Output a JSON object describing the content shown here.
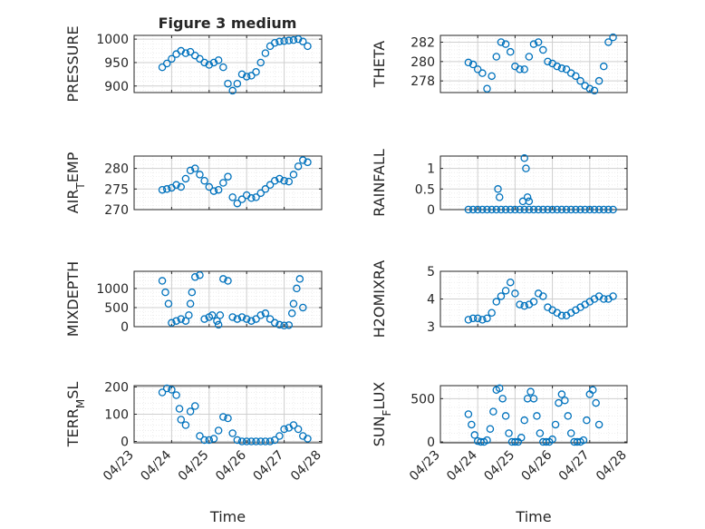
{
  "figure_title": "Figure 3 medium",
  "colors": {
    "marker": "#0072BD",
    "axis": "#262626",
    "grid": "#cfcfcf",
    "minor_grid": "#e6e6e6"
  },
  "chart_data": [
    {
      "type": "scatter",
      "title": "Figure 3 medium",
      "ylabel": "PRESSURE",
      "xlabel": "",
      "xlim": [
        "04/23",
        "04/28"
      ],
      "ylim": [
        886,
        1008
      ],
      "yticks": [
        900,
        950,
        1000
      ],
      "grid": true,
      "minor_grid": true,
      "marker": "open-circle",
      "x": [
        "04/23 18:00",
        "04/23 21:00",
        "04/24 00:00",
        "04/24 03:00",
        "04/24 06:00",
        "04/24 09:00",
        "04/24 12:00",
        "04/24 15:00",
        "04/24 18:00",
        "04/24 21:00",
        "04/25 00:00",
        "04/25 03:00",
        "04/25 06:00",
        "04/25 09:00",
        "04/25 12:00",
        "04/25 15:00",
        "04/25 18:00",
        "04/25 21:00",
        "04/26 00:00",
        "04/26 03:00",
        "04/26 06:00",
        "04/26 09:00",
        "04/26 12:00",
        "04/26 15:00",
        "04/26 18:00",
        "04/26 21:00",
        "04/27 00:00",
        "04/27 03:00",
        "04/27 06:00",
        "04/27 09:00",
        "04/27 12:00",
        "04/27 15:00"
      ],
      "y": [
        940,
        948,
        958,
        968,
        975,
        970,
        973,
        965,
        958,
        950,
        945,
        950,
        955,
        940,
        905,
        890,
        905,
        925,
        920,
        922,
        930,
        950,
        970,
        985,
        992,
        995,
        996,
        997,
        998,
        1000,
        995,
        985
      ]
    },
    {
      "type": "scatter",
      "ylabel": "THETA",
      "xlabel": "",
      "xlim": [
        "04/23",
        "04/28"
      ],
      "ylim": [
        276.8,
        282.7
      ],
      "yticks": [
        278,
        280,
        282
      ],
      "grid": true,
      "minor_grid": true,
      "marker": "open-circle",
      "x": [
        "04/23 18:00",
        "04/23 21:00",
        "04/24 00:00",
        "04/24 03:00",
        "04/24 06:00",
        "04/24 09:00",
        "04/24 12:00",
        "04/24 15:00",
        "04/24 18:00",
        "04/24 21:00",
        "04/25 00:00",
        "04/25 03:00",
        "04/25 06:00",
        "04/25 09:00",
        "04/25 12:00",
        "04/25 15:00",
        "04/25 18:00",
        "04/25 21:00",
        "04/26 00:00",
        "04/26 03:00",
        "04/26 06:00",
        "04/26 09:00",
        "04/26 12:00",
        "04/26 15:00",
        "04/26 18:00",
        "04/26 21:00",
        "04/27 00:00",
        "04/27 03:00",
        "04/27 06:00",
        "04/27 09:00",
        "04/27 12:00",
        "04/27 15:00"
      ],
      "y": [
        279.9,
        279.7,
        279.2,
        278.8,
        277.2,
        278.5,
        280.5,
        282.0,
        281.8,
        281.0,
        279.5,
        279.2,
        279.2,
        280.5,
        281.8,
        282.0,
        281.2,
        280.0,
        279.8,
        279.5,
        279.3,
        279.2,
        278.8,
        278.5,
        278.0,
        277.5,
        277.2,
        277.0,
        278.0,
        279.5,
        282.0,
        282.5
      ]
    },
    {
      "type": "scatter",
      "ylabel": "AIR_TEMP",
      "xlabel": "",
      "xlim": [
        "04/23",
        "04/28"
      ],
      "ylim": [
        270,
        283
      ],
      "yticks": [
        270,
        275,
        280
      ],
      "grid": true,
      "minor_grid": true,
      "marker": "open-circle",
      "x": [
        "04/23 18:00",
        "04/23 21:00",
        "04/24 00:00",
        "04/24 03:00",
        "04/24 06:00",
        "04/24 09:00",
        "04/24 12:00",
        "04/24 15:00",
        "04/24 18:00",
        "04/24 21:00",
        "04/25 00:00",
        "04/25 03:00",
        "04/25 06:00",
        "04/25 09:00",
        "04/25 12:00",
        "04/25 15:00",
        "04/25 18:00",
        "04/25 21:00",
        "04/26 00:00",
        "04/26 03:00",
        "04/26 06:00",
        "04/26 09:00",
        "04/26 12:00",
        "04/26 15:00",
        "04/26 18:00",
        "04/26 21:00",
        "04/27 00:00",
        "04/27 03:00",
        "04/27 06:00",
        "04/27 09:00",
        "04/27 12:00",
        "04/27 15:00"
      ],
      "y": [
        274.8,
        275.0,
        275.3,
        276.0,
        275.5,
        277.5,
        279.5,
        280.0,
        278.5,
        277.0,
        275.5,
        274.5,
        274.8,
        276.5,
        278.0,
        273.0,
        271.5,
        272.5,
        273.5,
        272.8,
        273.0,
        274.0,
        275.0,
        276.0,
        277.0,
        277.5,
        277.0,
        276.8,
        278.5,
        280.5,
        282.0,
        281.5
      ]
    },
    {
      "type": "scatter",
      "ylabel": "RAINFALL",
      "xlabel": "",
      "xlim": [
        "04/23",
        "04/28"
      ],
      "ylim": [
        0,
        1.3
      ],
      "yticks": [
        0,
        0.5,
        1
      ],
      "ytick_labels": [
        "0",
        "0.5",
        "1"
      ],
      "grid": true,
      "minor_grid": true,
      "marker": "open-circle",
      "x": [
        "04/23 18:00",
        "04/23 21:00",
        "04/24 00:00",
        "04/24 03:00",
        "04/24 06:00",
        "04/24 09:00",
        "04/24 12:00",
        "04/24 15:00",
        "04/24 18:00",
        "04/24 21:00",
        "04/25 00:00",
        "04/25 03:00",
        "04/25 06:00",
        "04/25 09:00",
        "04/25 12:00",
        "04/25 15:00",
        "04/25 18:00",
        "04/25 21:00",
        "04/26 00:00",
        "04/26 03:00",
        "04/26 06:00",
        "04/26 09:00",
        "04/26 12:00",
        "04/26 15:00",
        "04/26 18:00",
        "04/26 21:00",
        "04/27 00:00",
        "04/27 03:00",
        "04/27 06:00",
        "04/27 09:00",
        "04/27 12:00",
        "04/27 15:00",
        "04/24 13:00",
        "04/24 14:00",
        "04/25 05:00",
        "04/25 06:00",
        "04/25 07:00",
        "04/25 08:00",
        "04/25 09:00"
      ],
      "y": [
        0,
        0,
        0,
        0,
        0,
        0,
        0,
        0,
        0,
        0,
        0,
        0,
        0,
        0,
        0,
        0,
        0,
        0,
        0,
        0,
        0,
        0,
        0,
        0,
        0,
        0,
        0,
        0,
        0,
        0,
        0,
        0,
        0.5,
        0.3,
        0.2,
        1.25,
        1.0,
        0.3,
        0.2
      ]
    },
    {
      "type": "scatter",
      "ylabel": "MIXDEPTH",
      "xlabel": "",
      "xlim": [
        "04/23",
        "04/28"
      ],
      "ylim": [
        0,
        1450
      ],
      "yticks": [
        0,
        500,
        1000
      ],
      "grid": true,
      "minor_grid": true,
      "marker": "open-circle",
      "x": [
        "04/23 18:00",
        "04/23 20:00",
        "04/23 22:00",
        "04/24 00:00",
        "04/24 03:00",
        "04/24 06:00",
        "04/24 09:00",
        "04/24 11:00",
        "04/24 12:00",
        "04/24 13:00",
        "04/24 15:00",
        "04/24 18:00",
        "04/24 21:00",
        "04/25 00:00",
        "04/25 02:00",
        "04/25 05:00",
        "04/25 06:00",
        "04/25 07:00",
        "04/25 09:00",
        "04/25 12:00",
        "04/25 15:00",
        "04/25 18:00",
        "04/25 21:00",
        "04/26 00:00",
        "04/26 03:00",
        "04/26 06:00",
        "04/26 09:00",
        "04/26 12:00",
        "04/26 15:00",
        "04/26 18:00",
        "04/26 21:00",
        "04/27 00:00",
        "04/27 03:00",
        "04/27 05:00",
        "04/27 06:00",
        "04/27 08:00",
        "04/27 10:00",
        "04/27 12:00"
      ],
      "y": [
        1200,
        900,
        600,
        100,
        150,
        200,
        150,
        300,
        600,
        900,
        1300,
        1350,
        200,
        250,
        300,
        150,
        50,
        300,
        1250,
        1200,
        250,
        200,
        250,
        200,
        150,
        200,
        300,
        350,
        200,
        100,
        50,
        30,
        40,
        350,
        600,
        1000,
        1250,
        500
      ]
    },
    {
      "type": "scatter",
      "ylabel": "H2OMIXRA",
      "xlabel": "",
      "xlim": [
        "04/23",
        "04/28"
      ],
      "ylim": [
        3,
        5
      ],
      "yticks": [
        3,
        4,
        5
      ],
      "grid": true,
      "minor_grid": true,
      "marker": "open-circle",
      "x": [
        "04/23 18:00",
        "04/23 21:00",
        "04/24 00:00",
        "04/24 03:00",
        "04/24 06:00",
        "04/24 09:00",
        "04/24 12:00",
        "04/24 15:00",
        "04/24 18:00",
        "04/24 21:00",
        "04/25 00:00",
        "04/25 03:00",
        "04/25 06:00",
        "04/25 09:00",
        "04/25 12:00",
        "04/25 15:00",
        "04/25 18:00",
        "04/25 21:00",
        "04/26 00:00",
        "04/26 03:00",
        "04/26 06:00",
        "04/26 09:00",
        "04/26 12:00",
        "04/26 15:00",
        "04/26 18:00",
        "04/26 21:00",
        "04/27 00:00",
        "04/27 03:00",
        "04/27 06:00",
        "04/27 09:00",
        "04/27 12:00",
        "04/27 15:00"
      ],
      "y": [
        3.25,
        3.3,
        3.3,
        3.25,
        3.3,
        3.5,
        3.9,
        4.1,
        4.3,
        4.6,
        4.2,
        3.8,
        3.75,
        3.8,
        3.9,
        4.2,
        4.1,
        3.7,
        3.6,
        3.5,
        3.4,
        3.4,
        3.5,
        3.6,
        3.7,
        3.8,
        3.9,
        4.0,
        4.1,
        4.0,
        4.0,
        4.1
      ]
    },
    {
      "type": "scatter",
      "ylabel": "TERR_MSL",
      "xlabel": "Time",
      "xlim": [
        "04/23",
        "04/28"
      ],
      "ylim": [
        -5,
        205
      ],
      "yticks": [
        0,
        100,
        200
      ],
      "xticks": [
        "04/23",
        "04/24",
        "04/25",
        "04/26",
        "04/27",
        "04/28"
      ],
      "grid": true,
      "minor_grid": true,
      "marker": "open-circle",
      "x": [
        "04/23 18:00",
        "04/23 21:00",
        "04/24 00:00",
        "04/24 03:00",
        "04/24 05:00",
        "04/24 06:00",
        "04/24 09:00",
        "04/24 12:00",
        "04/24 15:00",
        "04/24 18:00",
        "04/24 21:00",
        "04/25 00:00",
        "04/25 03:00",
        "04/25 06:00",
        "04/25 09:00",
        "04/25 12:00",
        "04/25 15:00",
        "04/25 18:00",
        "04/25 21:00",
        "04/26 00:00",
        "04/26 03:00",
        "04/26 06:00",
        "04/26 09:00",
        "04/26 12:00",
        "04/26 15:00",
        "04/26 18:00",
        "04/26 21:00",
        "04/27 00:00",
        "04/27 03:00",
        "04/27 06:00",
        "04/27 09:00",
        "04/27 12:00",
        "04/27 15:00"
      ],
      "y": [
        180,
        195,
        190,
        170,
        120,
        80,
        60,
        110,
        130,
        20,
        5,
        5,
        10,
        40,
        90,
        85,
        30,
        5,
        0,
        0,
        0,
        0,
        0,
        0,
        0,
        5,
        20,
        45,
        50,
        60,
        45,
        20,
        10
      ]
    },
    {
      "type": "scatter",
      "ylabel": "SUN_FLUX",
      "xlabel": "Time",
      "xlim": [
        "04/23",
        "04/28"
      ],
      "ylim": [
        -10,
        650
      ],
      "yticks": [
        0,
        500
      ],
      "xticks": [
        "04/23",
        "04/24",
        "04/25",
        "04/26",
        "04/27",
        "04/28"
      ],
      "grid": true,
      "minor_grid": true,
      "marker": "open-circle",
      "x": [
        "04/23 18:00",
        "04/23 20:00",
        "04/23 22:00",
        "04/24 00:00",
        "04/24 02:00",
        "04/24 04:00",
        "04/24 06:00",
        "04/24 08:00",
        "04/24 10:00",
        "04/24 12:00",
        "04/24 14:00",
        "04/24 16:00",
        "04/24 18:00",
        "04/24 20:00",
        "04/24 22:00",
        "04/25 00:00",
        "04/25 02:00",
        "04/25 04:00",
        "04/25 06:00",
        "04/25 08:00",
        "04/25 10:00",
        "04/25 12:00",
        "04/25 14:00",
        "04/25 16:00",
        "04/25 18:00",
        "04/25 20:00",
        "04/25 22:00",
        "04/26 00:00",
        "04/26 02:00",
        "04/26 04:00",
        "04/26 06:00",
        "04/26 08:00",
        "04/26 10:00",
        "04/26 12:00",
        "04/26 14:00",
        "04/26 16:00",
        "04/26 18:00",
        "04/26 20:00",
        "04/26 22:00",
        "04/27 00:00",
        "04/27 02:00",
        "04/27 04:00",
        "04/27 06:00"
      ],
      "y": [
        320,
        200,
        80,
        10,
        0,
        0,
        20,
        150,
        350,
        600,
        620,
        500,
        300,
        100,
        0,
        0,
        0,
        50,
        250,
        500,
        580,
        500,
        300,
        100,
        0,
        0,
        0,
        30,
        200,
        450,
        550,
        480,
        300,
        100,
        0,
        0,
        0,
        20,
        250,
        550,
        600,
        450,
        200
      ]
    }
  ]
}
